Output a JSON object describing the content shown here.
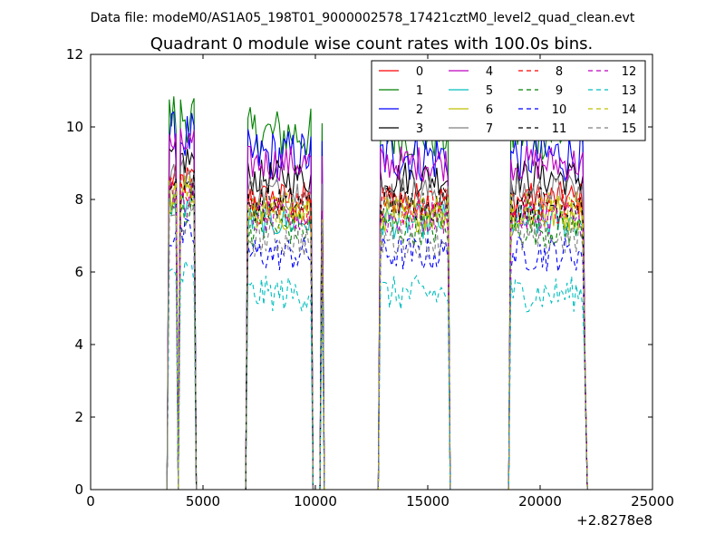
{
  "header": {
    "data_file": "Data file: modeM0/AS1A05_198T01_9000002578_17421cztM0_level2_quad_clean.evt"
  },
  "chart_data": {
    "type": "line",
    "title": "Quadrant 0 module wise count rates with 100.0s bins.",
    "xlabel": "",
    "ylabel": "",
    "x_offset_label": "+2.8278e8",
    "xlim": [
      0,
      25000
    ],
    "ylim": [
      0,
      12
    ],
    "x_ticks": [
      0,
      5000,
      10000,
      15000,
      20000,
      25000
    ],
    "y_ticks": [
      0,
      2,
      4,
      6,
      8,
      10,
      12
    ],
    "grid": false,
    "legend_position": "top-right",
    "legend_columns": 4,
    "segments": [
      {
        "x_start": 3500,
        "x_end": 3800
      },
      {
        "x_start": 3950,
        "x_end": 4600
      },
      {
        "x_start": 6950,
        "x_end": 9850
      },
      {
        "x_start": 10250,
        "x_end": 10350
      },
      {
        "x_start": 12850,
        "x_end": 15900
      },
      {
        "x_start": 18650,
        "x_end": 22050
      }
    ],
    "series": [
      {
        "name": "0",
        "color": "#ff0000",
        "dash": "solid",
        "level": 8.0
      },
      {
        "name": "1",
        "color": "#008000",
        "dash": "solid",
        "level": 9.8
      },
      {
        "name": "2",
        "color": "#0000ff",
        "dash": "solid",
        "level": 9.2
      },
      {
        "name": "3",
        "color": "#000000",
        "dash": "solid",
        "level": 8.6
      },
      {
        "name": "4",
        "color": "#bf00bf",
        "dash": "solid",
        "level": 9.0
      },
      {
        "name": "5",
        "color": "#00bfbf",
        "dash": "solid",
        "level": 7.4
      },
      {
        "name": "6",
        "color": "#bfbf00",
        "dash": "solid",
        "level": 7.6
      },
      {
        "name": "7",
        "color": "#808080",
        "dash": "solid",
        "level": 8.2
      },
      {
        "name": "8",
        "color": "#ff0000",
        "dash": "dashed",
        "level": 7.8
      },
      {
        "name": "9",
        "color": "#008000",
        "dash": "dashed",
        "level": 7.2
      },
      {
        "name": "10",
        "color": "#0000ff",
        "dash": "dashed",
        "level": 6.5
      },
      {
        "name": "11",
        "color": "#000000",
        "dash": "dashed",
        "level": 7.9
      },
      {
        "name": "12",
        "color": "#bf00bf",
        "dash": "dashed",
        "level": 7.5
      },
      {
        "name": "13",
        "color": "#00bfbf",
        "dash": "dashed",
        "level": 5.4
      },
      {
        "name": "14",
        "color": "#bfbf00",
        "dash": "dashed",
        "level": 7.7
      },
      {
        "name": "15",
        "color": "#808080",
        "dash": "dashed",
        "level": 6.9
      }
    ]
  }
}
